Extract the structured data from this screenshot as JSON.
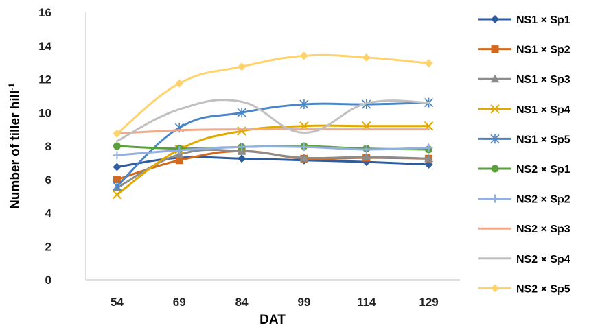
{
  "chart_data": {
    "type": "line",
    "xlabel": "DAT",
    "ylabel": "Number of tiller hill",
    "ylabel_sup": "-1",
    "categories": [
      "54",
      "69",
      "84",
      "99",
      "114",
      "129"
    ],
    "ylim": [
      0,
      16
    ],
    "yticks": [
      0,
      2,
      4,
      6,
      8,
      10,
      12,
      14,
      16
    ],
    "grid": false,
    "legend_position": "right",
    "series": [
      {
        "name": "NS1 × Sp1",
        "color": "#2E5C9E",
        "marker": "diamond",
        "values": [
          6.75,
          7.3,
          7.25,
          7.15,
          7.05,
          6.9
        ]
      },
      {
        "name": "NS1 × Sp2",
        "color": "#D2691E",
        "marker": "square",
        "values": [
          6.0,
          7.15,
          7.7,
          7.25,
          7.3,
          7.25
        ]
      },
      {
        "name": "NS1 × Sp3",
        "color": "#8C8C8C",
        "marker": "triangle",
        "values": [
          5.5,
          7.5,
          7.7,
          7.3,
          7.35,
          7.25
        ]
      },
      {
        "name": "NS1 × Sp4",
        "color": "#E0A800",
        "marker": "x",
        "values": [
          5.1,
          7.8,
          8.9,
          9.2,
          9.2,
          9.2
        ]
      },
      {
        "name": "NS1 × Sp5",
        "color": "#4A86C5",
        "marker": "star",
        "values": [
          5.6,
          9.1,
          10.0,
          10.5,
          10.5,
          10.6
        ]
      },
      {
        "name": "NS2 × Sp1",
        "color": "#5B9E3C",
        "marker": "circle",
        "values": [
          8.0,
          7.85,
          7.95,
          8.0,
          7.85,
          7.8
        ]
      },
      {
        "name": "NS2 × Sp2",
        "color": "#93AEE0",
        "marker": "plus",
        "values": [
          7.45,
          7.75,
          7.95,
          7.95,
          7.8,
          7.9
        ]
      },
      {
        "name": "NS2 × Sp3",
        "color": "#F1A98A",
        "marker": "none",
        "values": [
          8.75,
          8.95,
          9.0,
          9.0,
          9.0,
          9.0
        ]
      },
      {
        "name": "NS2 × Sp4",
        "color": "#C0C0C0",
        "marker": "none",
        "values": [
          8.3,
          10.2,
          10.65,
          8.8,
          10.55,
          10.6
        ]
      },
      {
        "name": "NS2 × Sp5",
        "color": "#FFD26B",
        "marker": "diamond",
        "values": [
          8.75,
          11.75,
          12.75,
          13.4,
          13.3,
          12.95
        ]
      }
    ]
  }
}
